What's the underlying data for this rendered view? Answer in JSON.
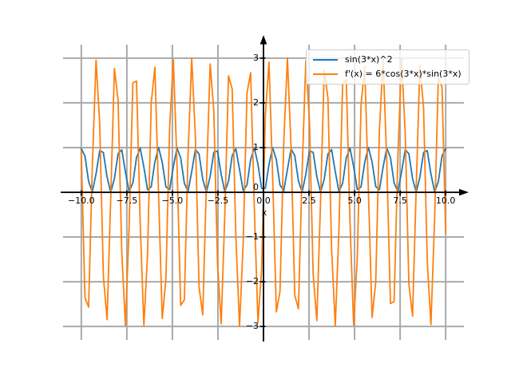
{
  "figure": {
    "background": "#ffffff"
  },
  "chart_data": {
    "type": "line",
    "title": "",
    "xlabel": "x",
    "ylabel": "",
    "grid": true,
    "grid_color": "#a9a9a9",
    "axis_color": "#000000",
    "legend_position": "upper right",
    "xlim": [
      -11,
      11
    ],
    "ylim": [
      -3.3,
      3.3
    ],
    "x_sampling": {
      "min": -10,
      "max": 10,
      "samples": 100
    },
    "xticks": [
      -10.0,
      -7.5,
      -5.0,
      -2.5,
      0.0,
      2.5,
      5.0,
      7.5,
      10.0
    ],
    "xtick_labels": [
      "−10.0",
      "−7.5",
      "−5.0",
      "−2.5",
      "0.0",
      "2.5",
      "5.0",
      "7.5",
      "10.0"
    ],
    "yticks": [
      -3,
      -2,
      -1,
      0,
      1,
      2,
      3
    ],
    "ytick_labels": [
      "−3",
      "−2",
      "−1",
      "0",
      "1",
      "2",
      "3"
    ],
    "series": [
      {
        "label": "sin(3*x)^2",
        "color": "#1f77b4",
        "formula_text": "sin(3*x)^2",
        "formula": {
          "amplitude": 1,
          "omega": 3,
          "power": 2
        }
      },
      {
        "label": "f'(x) = 6*cos(3*x)*sin(3*x)",
        "color": "#ff7f0e",
        "formula_text": "6*cos(3*x)*sin(3*x) = 3*sin(6*x)",
        "formula": {
          "amplitude": 3,
          "omega": 6,
          "power": 1
        }
      }
    ]
  }
}
